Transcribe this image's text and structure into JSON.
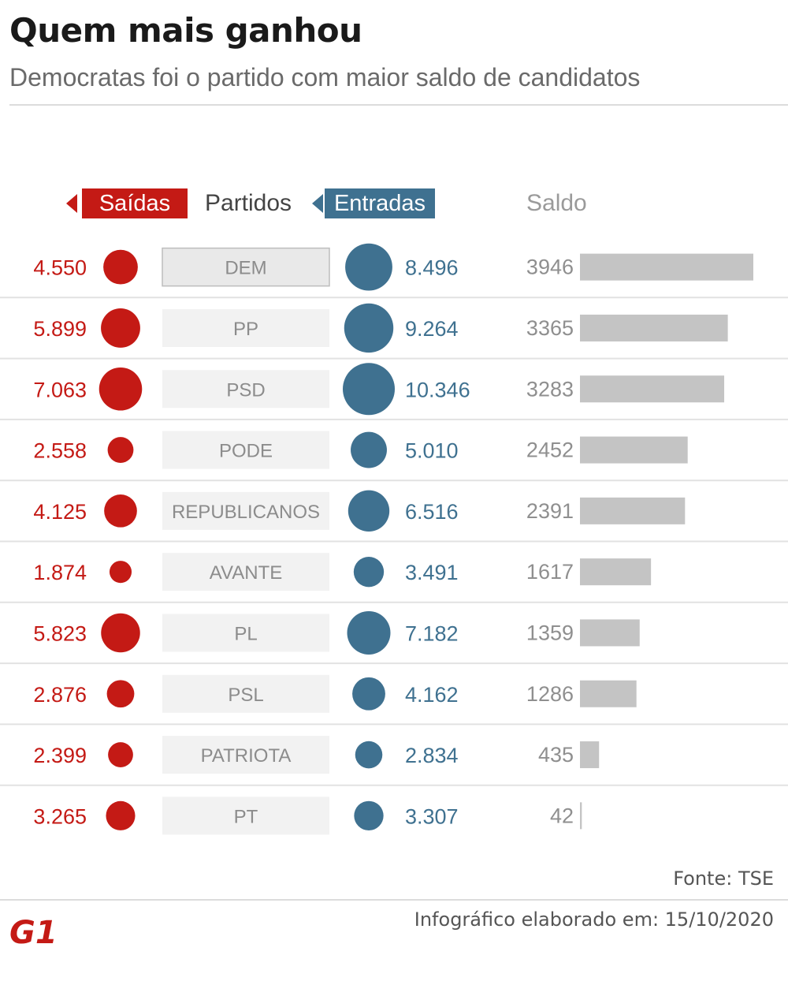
{
  "header": {
    "title": "Quem mais ganhou",
    "subtitle": "Democratas foi o partido com maior saldo de candidatos"
  },
  "columns": {
    "exits": "Saídas",
    "parties": "Partidos",
    "entries": "Entradas",
    "balance": "Saldo"
  },
  "colors": {
    "exits": "#c41a15",
    "entries": "#3f7190",
    "balance_bar": "#c4c4c4",
    "party_box": "#f2f2f2",
    "party_box_highlight": "#e9e9e9"
  },
  "chart_data": {
    "type": "table",
    "highlighted_party": "DEM",
    "rows": [
      {
        "party": "DEM",
        "exits": 4550,
        "exits_label": "4.550",
        "entries": 8496,
        "entries_label": "8.496",
        "balance": 3946
      },
      {
        "party": "PP",
        "exits": 5899,
        "exits_label": "5.899",
        "entries": 9264,
        "entries_label": "9.264",
        "balance": 3365
      },
      {
        "party": "PSD",
        "exits": 7063,
        "exits_label": "7.063",
        "entries": 10346,
        "entries_label": "10.346",
        "balance": 3283
      },
      {
        "party": "PODE",
        "exits": 2558,
        "exits_label": "2.558",
        "entries": 5010,
        "entries_label": "5.010",
        "balance": 2452
      },
      {
        "party": "REPUBLICANOS",
        "exits": 4125,
        "exits_label": "4.125",
        "entries": 6516,
        "entries_label": "6.516",
        "balance": 2391
      },
      {
        "party": "AVANTE",
        "exits": 1874,
        "exits_label": "1.874",
        "entries": 3491,
        "entries_label": "3.491",
        "balance": 1617
      },
      {
        "party": "PL",
        "exits": 5823,
        "exits_label": "5.823",
        "entries": 7182,
        "entries_label": "7.182",
        "balance": 1359
      },
      {
        "party": "PSL",
        "exits": 2876,
        "exits_label": "2.876",
        "entries": 4162,
        "entries_label": "4.162",
        "balance": 1286
      },
      {
        "party": "PATRIOTA",
        "exits": 2399,
        "exits_label": "2.399",
        "entries": 2834,
        "entries_label": "2.834",
        "balance": 435
      },
      {
        "party": "PT",
        "exits": 3265,
        "exits_label": "3.265",
        "entries": 3307,
        "entries_label": "3.307",
        "balance": 42
      }
    ]
  },
  "footer": {
    "source": "Fonte: TSE",
    "logo_text": "G1",
    "credit": "Infográfico elaborado em: 15/10/2020"
  }
}
